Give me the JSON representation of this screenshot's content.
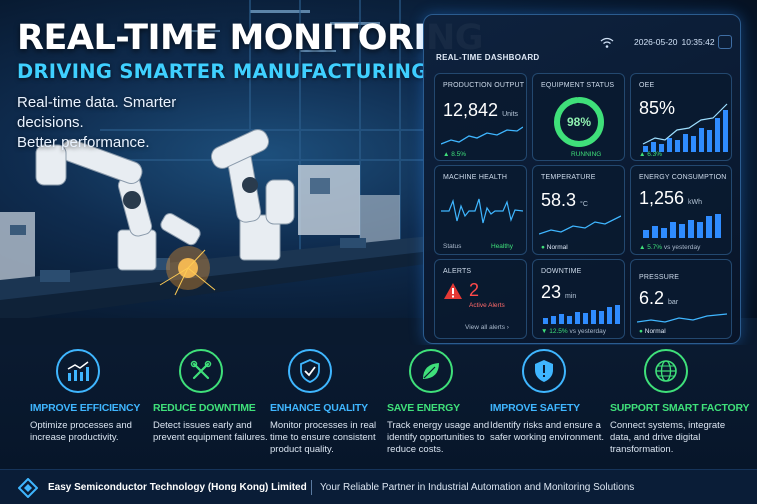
{
  "hero": {
    "title": "REAL-TIME MONITORING",
    "subtitle": "DRIVING SMARTER MANUFACTURING",
    "tagline_1": "Real-time data. Smarter decisions.",
    "tagline_2": "Better performance."
  },
  "dashboard": {
    "title": "REAL-TIME DASHBOARD",
    "date": "2026-05-20",
    "time": "10:35:42",
    "production": {
      "label": "PRODUCTION OUTPUT",
      "value": "12,842",
      "unit": "Units",
      "delta": "▲ 8.5%"
    },
    "equipment": {
      "label": "EQUIPMENT STATUS",
      "value": "98%",
      "state": "RUNNING",
      "percent": 98
    },
    "oee": {
      "label": "OEE",
      "value": "85%",
      "delta": "▲ 6.3%"
    },
    "machine": {
      "label": "MACHINE HEALTH",
      "status_label": "Status",
      "status": "Healthy"
    },
    "temperature": {
      "label": "TEMPERATURE",
      "value": "58.3",
      "unit": "°C",
      "status": "Normal"
    },
    "energy": {
      "label": "ENERGY CONSUMPTION",
      "value": "1,256",
      "unit": "kWh",
      "delta": "▲ 5.7%",
      "delta_note": "vs yesterday"
    },
    "alerts": {
      "label": "ALERTS",
      "count": "2",
      "sub": "Active Alerts",
      "link": "View all alerts  ›"
    },
    "downtime": {
      "label": "DOWNTIME",
      "value": "23",
      "unit": "min",
      "delta": "▼ 12.5%",
      "delta_note": "vs yesterday"
    },
    "pressure": {
      "label": "PRESSURE",
      "value": "6.2",
      "unit": "bar",
      "status": "Normal"
    }
  },
  "features": [
    {
      "title": "IMPROVE EFFICIENCY",
      "desc": "Optimize processes and increase productivity.",
      "color": "#3fb6ff",
      "icon": "chart-up-icon"
    },
    {
      "title": "REDUCE DOWNTIME",
      "desc": "Detect issues early and prevent equipment failures.",
      "color": "#3fe07a",
      "icon": "tools-icon"
    },
    {
      "title": "ENHANCE QUALITY",
      "desc": "Monitor processes in real time to ensure consistent product quality.",
      "color": "#3fb6ff",
      "icon": "shield-check-icon"
    },
    {
      "title": "SAVE ENERGY",
      "desc": "Track energy usage and identify opportunities to reduce costs.",
      "color": "#3fe07a",
      "icon": "leaf-icon"
    },
    {
      "title": "IMPROVE SAFETY",
      "desc": "Identify risks and ensure a safer working environment.",
      "color": "#3fb6ff",
      "icon": "shield-alert-icon"
    },
    {
      "title": "SUPPORT SMART FACTORY",
      "desc": "Connect systems, integrate data, and drive digital transformation.",
      "color": "#3fe07a",
      "icon": "globe-icon"
    }
  ],
  "footer": {
    "company": "Easy Semiconductor Technology (Hong Kong) Limited",
    "slogan": "Your Reliable Partner in Industrial Automation and Monitoring Solutions"
  }
}
